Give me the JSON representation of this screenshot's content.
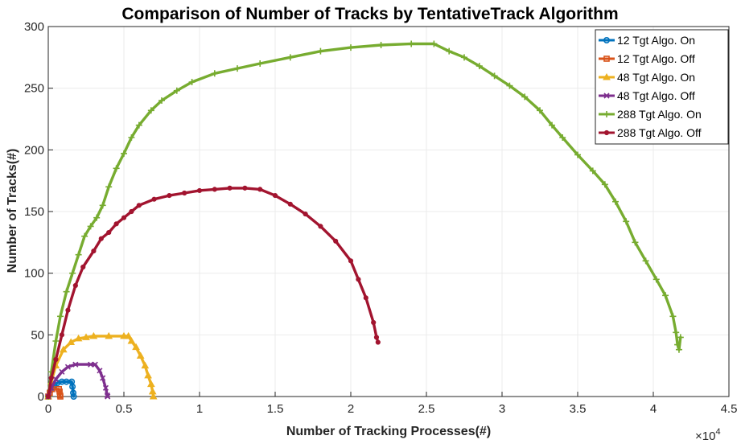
{
  "chart_data": {
    "type": "line",
    "title": "Comparison of Number of Tracks by TentativeTrack Algorithm",
    "xlabel": "Number of Tracking Processes(#)",
    "ylabel": "Number of Tracks(#)",
    "x_exponent_label": "×10",
    "x_exponent_power": "4",
    "xlim": [
      0,
      45000
    ],
    "ylim": [
      0,
      300
    ],
    "xticks": [
      0,
      5000,
      10000,
      15000,
      20000,
      25000,
      30000,
      35000,
      40000,
      45000
    ],
    "xtick_labels": [
      "0",
      "0.5",
      "1",
      "1.5",
      "2",
      "2.5",
      "3",
      "3.5",
      "4",
      "4.5"
    ],
    "yticks": [
      0,
      50,
      100,
      150,
      200,
      250,
      300
    ],
    "ytick_labels": [
      "0",
      "50",
      "100",
      "150",
      "200",
      "250",
      "300"
    ],
    "grid": true,
    "legend_position": "top-right",
    "series": [
      {
        "name": "12 Tgt Algo. On",
        "color": "#0072BD",
        "marker": "circle",
        "points": [
          [
            0,
            0
          ],
          [
            150,
            5
          ],
          [
            350,
            9
          ],
          [
            600,
            11
          ],
          [
            900,
            12
          ],
          [
            1200,
            12
          ],
          [
            1550,
            12
          ],
          [
            1600,
            8
          ],
          [
            1650,
            3
          ],
          [
            1680,
            0
          ]
        ]
      },
      {
        "name": "12 Tgt Algo. Off",
        "color": "#D95319",
        "marker": "square",
        "points": [
          [
            0,
            0
          ],
          [
            100,
            3
          ],
          [
            250,
            6
          ],
          [
            700,
            6
          ],
          [
            750,
            4
          ],
          [
            780,
            1
          ],
          [
            800,
            0
          ]
        ]
      },
      {
        "name": "48 Tgt Algo. On",
        "color": "#EDB120",
        "marker": "triangle",
        "points": [
          [
            0,
            0
          ],
          [
            200,
            12
          ],
          [
            500,
            25
          ],
          [
            1000,
            38
          ],
          [
            1500,
            44
          ],
          [
            2000,
            47
          ],
          [
            2500,
            48
          ],
          [
            3000,
            49
          ],
          [
            4000,
            49
          ],
          [
            5000,
            49
          ],
          [
            5300,
            49
          ],
          [
            5500,
            45
          ],
          [
            5800,
            40
          ],
          [
            6100,
            33
          ],
          [
            6400,
            25
          ],
          [
            6600,
            17
          ],
          [
            6800,
            10
          ],
          [
            6900,
            4
          ],
          [
            6950,
            0
          ]
        ]
      },
      {
        "name": "48 Tgt Algo. Off",
        "color": "#7E2F8E",
        "marker": "x",
        "points": [
          [
            0,
            0
          ],
          [
            200,
            7
          ],
          [
            500,
            14
          ],
          [
            900,
            20
          ],
          [
            1300,
            24
          ],
          [
            1800,
            26
          ],
          [
            2800,
            26
          ],
          [
            3100,
            26
          ],
          [
            3400,
            21
          ],
          [
            3600,
            15
          ],
          [
            3800,
            7
          ],
          [
            3900,
            1
          ],
          [
            3920,
            0
          ]
        ]
      },
      {
        "name": "288 Tgt Algo. On",
        "color": "#77AC30",
        "marker": "plus",
        "points": [
          [
            0,
            0
          ],
          [
            200,
            20
          ],
          [
            500,
            45
          ],
          [
            800,
            65
          ],
          [
            1200,
            85
          ],
          [
            1600,
            100
          ],
          [
            2000,
            115
          ],
          [
            2400,
            130
          ],
          [
            2800,
            138
          ],
          [
            3200,
            145
          ],
          [
            3600,
            155
          ],
          [
            4000,
            170
          ],
          [
            4500,
            185
          ],
          [
            5000,
            197
          ],
          [
            5500,
            210
          ],
          [
            6000,
            220
          ],
          [
            6800,
            232
          ],
          [
            7500,
            240
          ],
          [
            8500,
            248
          ],
          [
            9500,
            255
          ],
          [
            11000,
            262
          ],
          [
            12500,
            266
          ],
          [
            14000,
            270
          ],
          [
            16000,
            275
          ],
          [
            18000,
            280
          ],
          [
            20000,
            283
          ],
          [
            22000,
            285
          ],
          [
            24000,
            286
          ],
          [
            25500,
            286
          ],
          [
            26500,
            280
          ],
          [
            27500,
            275
          ],
          [
            28500,
            268
          ],
          [
            29500,
            260
          ],
          [
            30500,
            252
          ],
          [
            31500,
            243
          ],
          [
            32500,
            232
          ],
          [
            33300,
            220
          ],
          [
            34000,
            210
          ],
          [
            35000,
            196
          ],
          [
            36000,
            183
          ],
          [
            36800,
            172
          ],
          [
            37500,
            158
          ],
          [
            38200,
            142
          ],
          [
            38800,
            125
          ],
          [
            39500,
            110
          ],
          [
            40200,
            95
          ],
          [
            40800,
            82
          ],
          [
            41300,
            65
          ],
          [
            41500,
            52
          ],
          [
            41600,
            42
          ],
          [
            41700,
            38
          ],
          [
            41800,
            48
          ]
        ]
      },
      {
        "name": "288 Tgt Algo. Off",
        "color": "#A2142F",
        "marker": "dot",
        "points": [
          [
            0,
            0
          ],
          [
            200,
            15
          ],
          [
            500,
            30
          ],
          [
            900,
            50
          ],
          [
            1300,
            70
          ],
          [
            1800,
            90
          ],
          [
            2300,
            105
          ],
          [
            3000,
            118
          ],
          [
            3500,
            128
          ],
          [
            4000,
            133
          ],
          [
            4500,
            140
          ],
          [
            5000,
            145
          ],
          [
            5500,
            150
          ],
          [
            6000,
            155
          ],
          [
            7000,
            160
          ],
          [
            8000,
            163
          ],
          [
            9000,
            165
          ],
          [
            10000,
            167
          ],
          [
            11000,
            168
          ],
          [
            12000,
            169
          ],
          [
            13000,
            169
          ],
          [
            14000,
            168
          ],
          [
            15000,
            163
          ],
          [
            16000,
            156
          ],
          [
            17000,
            148
          ],
          [
            18000,
            138
          ],
          [
            19000,
            126
          ],
          [
            20000,
            110
          ],
          [
            20500,
            95
          ],
          [
            21000,
            80
          ],
          [
            21500,
            60
          ],
          [
            21700,
            48
          ],
          [
            21800,
            44
          ]
        ]
      }
    ]
  }
}
